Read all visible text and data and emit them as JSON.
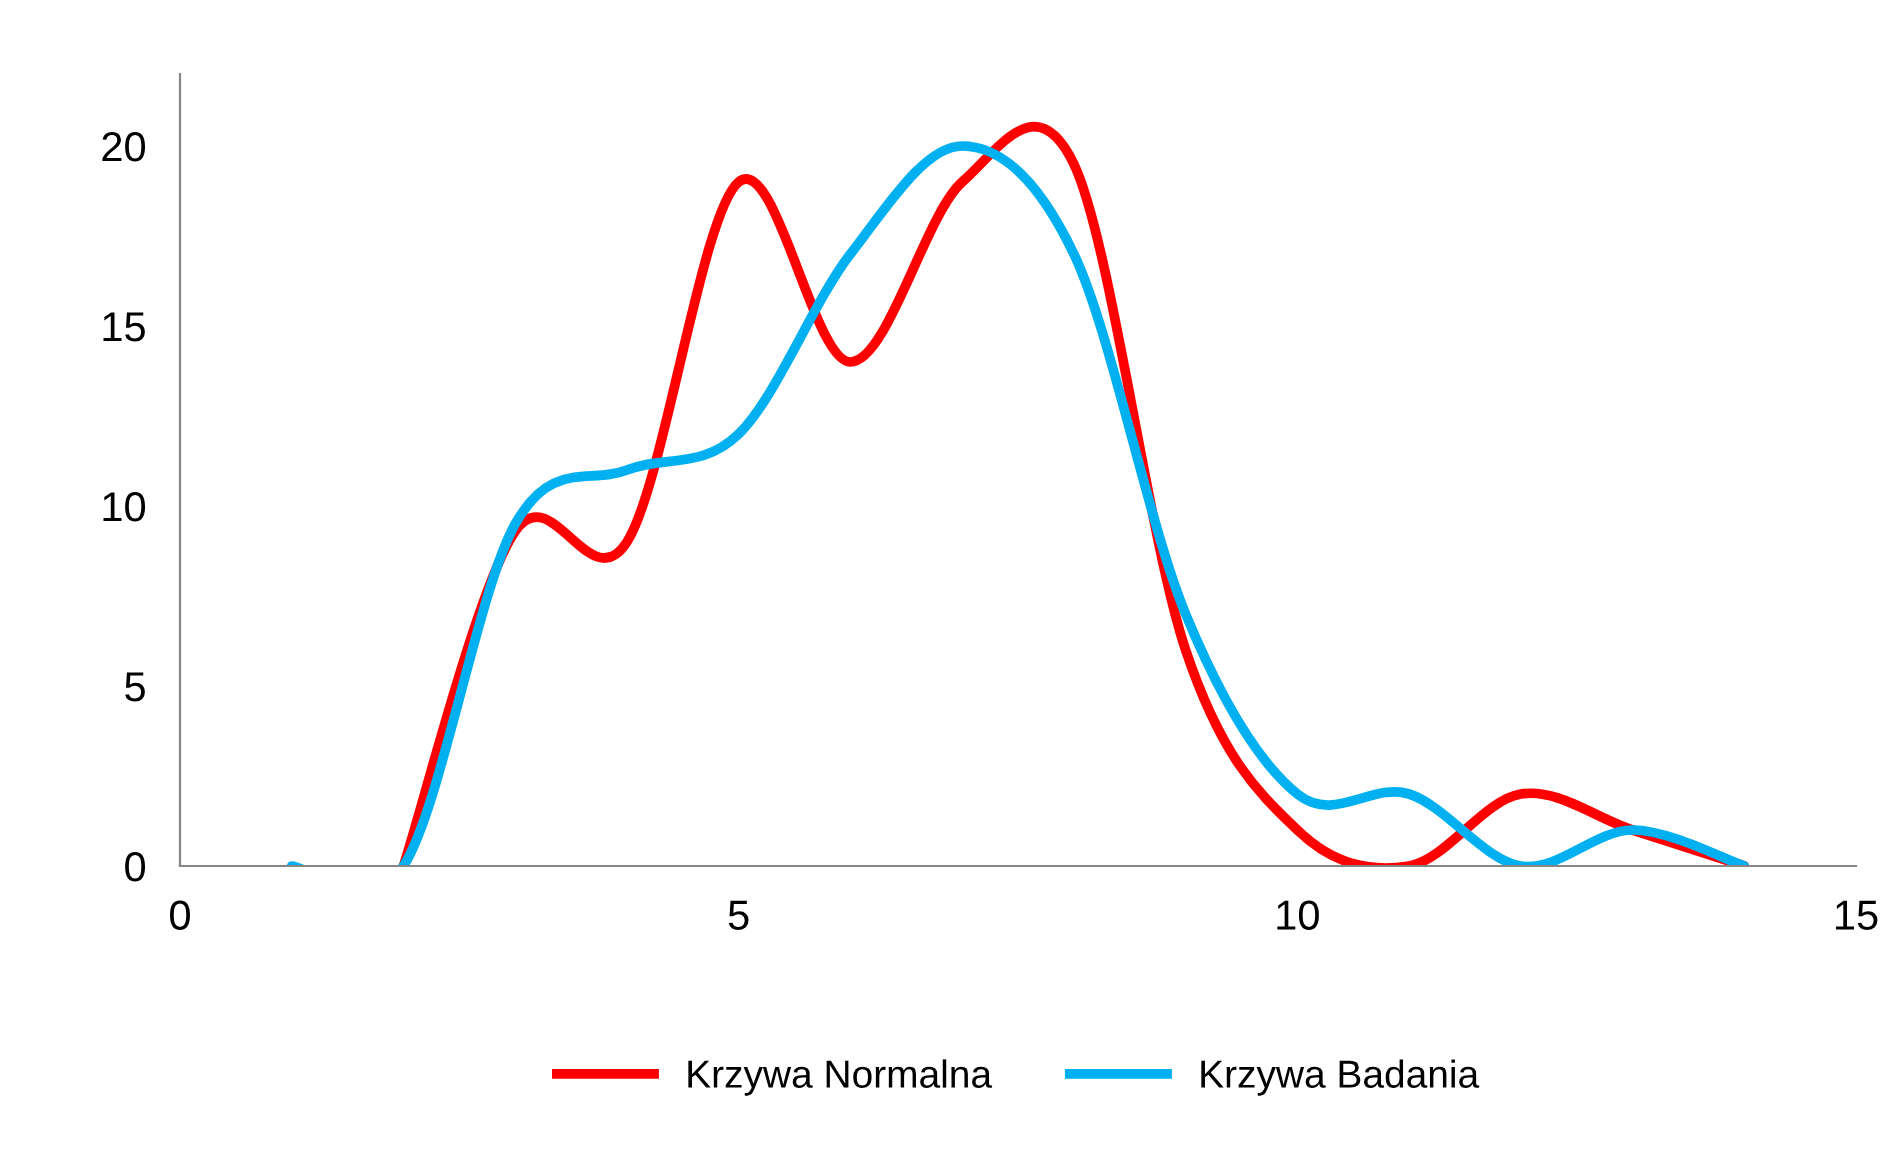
{
  "chart_data": {
    "type": "line",
    "x": [
      1,
      2,
      3,
      4,
      5,
      6,
      7,
      8,
      9,
      10,
      11,
      12,
      13,
      14
    ],
    "series": [
      {
        "name": "Krzywa Normalna",
        "color": "#ff0000",
        "values": [
          null,
          0,
          9.3,
          9,
          19,
          14,
          19,
          19.5,
          6,
          1,
          0,
          2,
          1,
          0
        ]
      },
      {
        "name": "Krzywa Badania",
        "color": "#00b0f0",
        "values": [
          0,
          0,
          9.5,
          11,
          12,
          17,
          20,
          17,
          7,
          2,
          2,
          0,
          1,
          0
        ]
      }
    ],
    "xlim": [
      0,
      15
    ],
    "ylim": [
      0,
      22
    ],
    "xticks": [
      0,
      5,
      10,
      15
    ],
    "yticks": [
      0,
      5,
      10,
      15,
      20
    ],
    "grid": false,
    "legend": "bottom",
    "marker": "none",
    "line_style": "solid"
  }
}
